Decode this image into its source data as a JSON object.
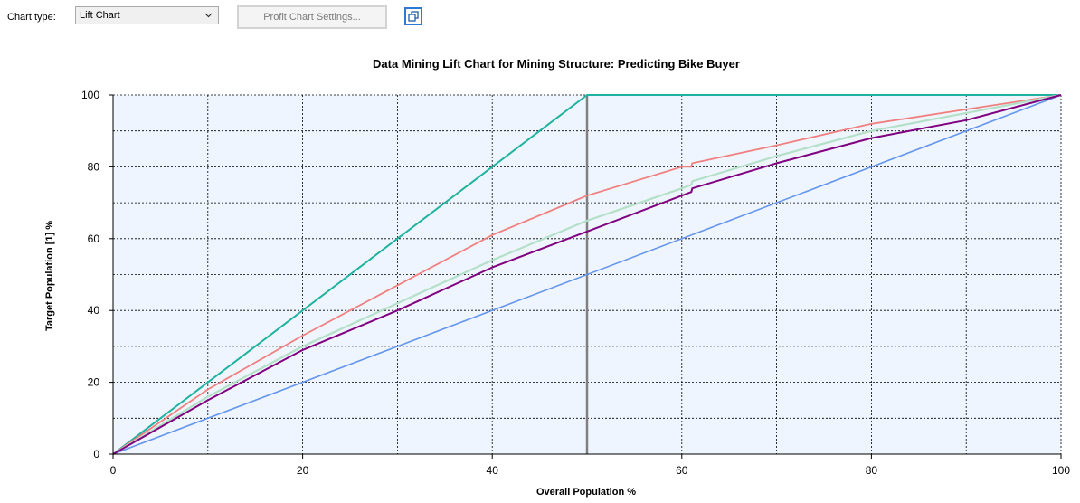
{
  "toolbar": {
    "chart_type_label": "Chart type:",
    "chart_type_value": "Lift Chart",
    "profit_settings_label": "Profit Chart Settings..."
  },
  "icons": {
    "dropdown": "chevron-down-icon",
    "restore": "restore-window-icon"
  },
  "colors": {
    "plot_background": "#eef5fe",
    "grid": "#000000",
    "ideal": "#20b2a0",
    "random": "#6495ed",
    "model_red": "#f08080",
    "model_green": "#b4e0c8",
    "model_purple": "#800080",
    "marker": "#808080"
  },
  "chart_data": {
    "type": "line",
    "title": "Data Mining Lift Chart for Mining Structure: Predicting Bike Buyer",
    "xlabel": "Overall Population %",
    "ylabel": "Target Population [1] %",
    "xlim": [
      0,
      100
    ],
    "ylim": [
      0,
      100
    ],
    "x_ticks": [
      "0",
      "20",
      "40",
      "60",
      "80",
      "100"
    ],
    "y_ticks": [
      "0",
      "20",
      "40",
      "60",
      "80",
      "100"
    ],
    "grid": true,
    "vertical_marker_x": 50,
    "series": [
      {
        "x": [
          0,
          50,
          100
        ],
        "y": [
          0,
          100,
          100
        ]
      },
      {
        "x": [
          0,
          100
        ],
        "y": [
          0,
          100
        ]
      },
      {
        "x": [
          0,
          10,
          20,
          30,
          40,
          50,
          55,
          60,
          61,
          61.1,
          70,
          80,
          90,
          100
        ],
        "y": [
          0,
          18,
          33,
          47,
          61,
          72,
          76,
          80,
          80,
          81,
          86,
          92,
          96,
          100
        ]
      },
      {
        "x": [
          0,
          10,
          20,
          30,
          40,
          50,
          60,
          61,
          61.1,
          70,
          80,
          90,
          100
        ],
        "y": [
          0,
          16,
          30,
          42,
          54,
          65,
          74,
          75,
          76,
          83,
          90,
          95,
          100
        ]
      },
      {
        "x": [
          0,
          10,
          20,
          30,
          40,
          50,
          60,
          61,
          61.1,
          70,
          80,
          90,
          100
        ],
        "y": [
          0,
          15,
          29,
          40,
          52,
          62,
          72,
          73,
          74,
          81,
          88,
          93,
          100
        ]
      }
    ]
  }
}
